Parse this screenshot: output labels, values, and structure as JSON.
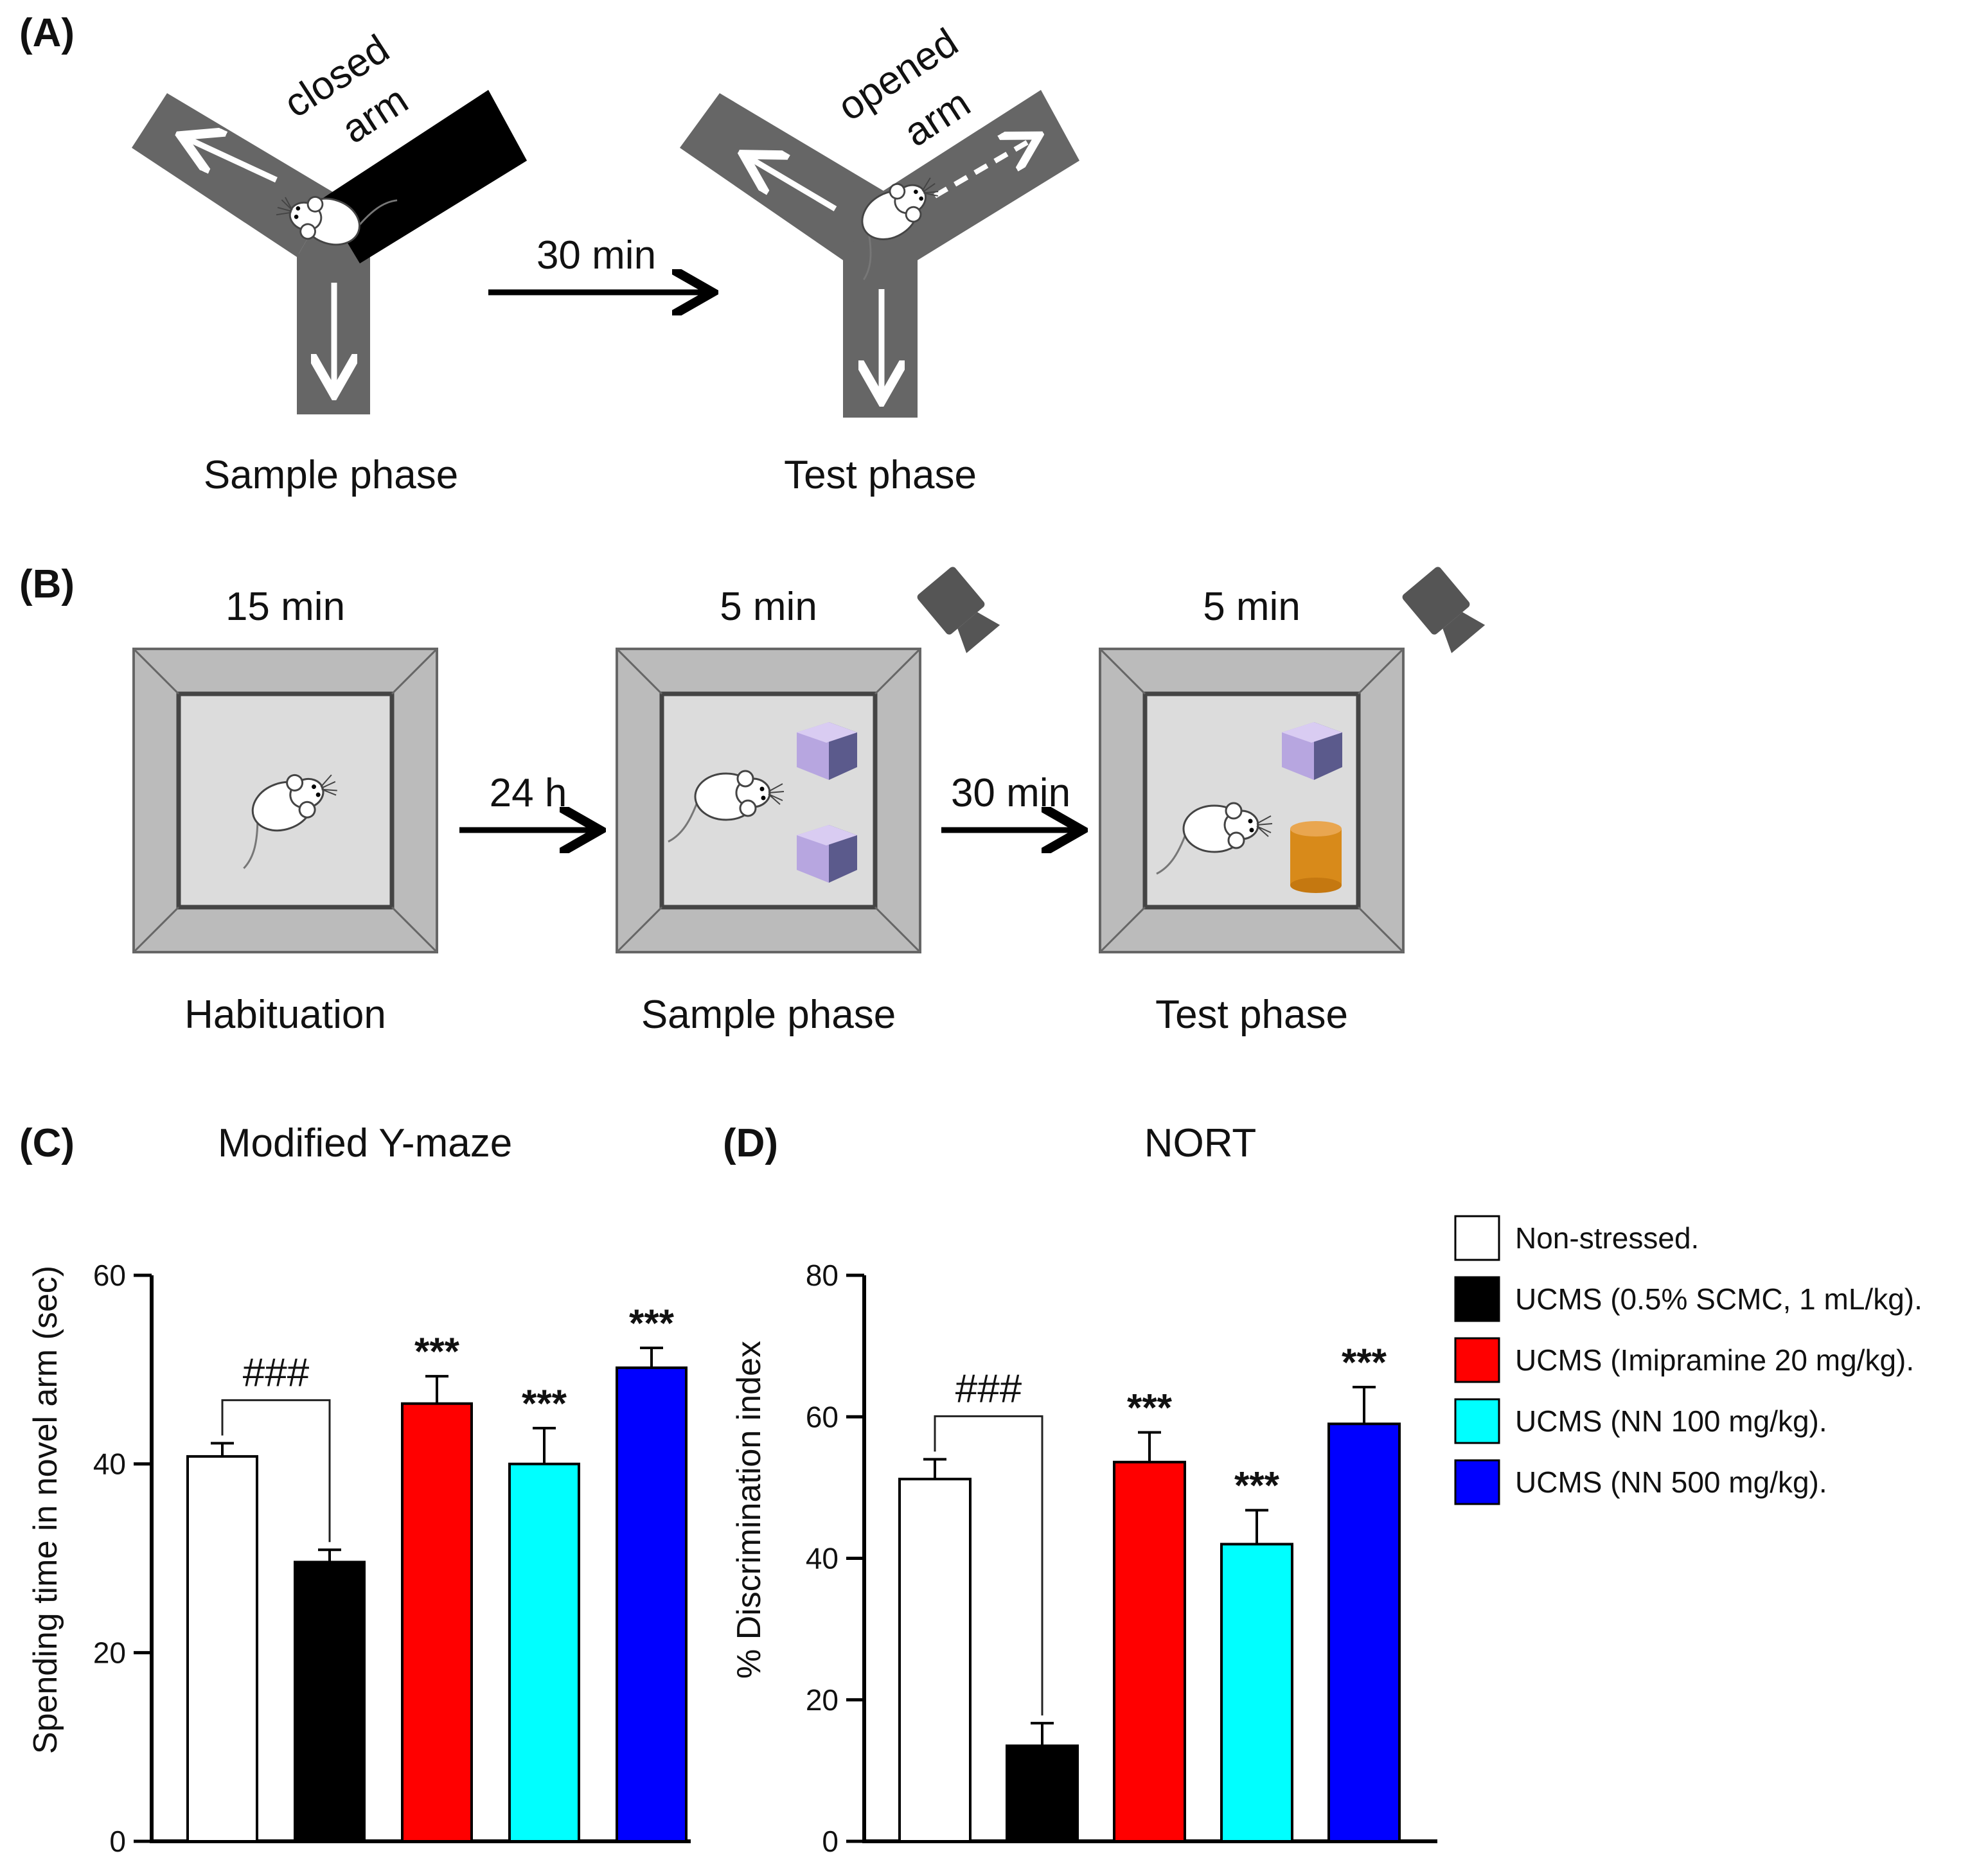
{
  "panel_a": {
    "label": "(A)",
    "closed_arm_line1": "closed",
    "closed_arm_line2": "arm",
    "opened_arm_line1": "opened",
    "opened_arm_line2": "arm",
    "interval": "30 min",
    "sample_caption": "Sample phase",
    "test_caption": "Test phase"
  },
  "panel_b": {
    "label": "(B)",
    "durations": [
      "15 min",
      "5 min",
      "5 min"
    ],
    "intervals": [
      "24 h",
      "30 min"
    ],
    "captions": [
      "Habituation",
      "Sample phase",
      "Test phase"
    ]
  },
  "legend": [
    {
      "label": "Non-stressed.",
      "color": "#ffffff"
    },
    {
      "label": "UCMS (0.5% SCMC, 1 mL/kg).",
      "color": "#000000"
    },
    {
      "label": "UCMS (Imipramine 20 mg/kg).",
      "color": "#ff0000"
    },
    {
      "label": "UCMS (NN 100 mg/kg).",
      "color": "#00ffff"
    },
    {
      "label": "UCMS (NN 500 mg/kg).",
      "color": "#0000ff"
    }
  ],
  "chart_data": [
    {
      "panel_label": "(C)",
      "type": "bar",
      "title": "Modified Y-maze",
      "ylabel": "Spending time in novel arm (sec)",
      "xlabel": "",
      "ylim": [
        0,
        60
      ],
      "yticks": [
        0,
        20,
        40,
        60
      ],
      "values": [
        40.8,
        29.6,
        46.4,
        40.0,
        50.2
      ],
      "errors": [
        1.4,
        1.3,
        2.9,
        3.8,
        2.1
      ],
      "colors": [
        "#ffffff",
        "#000000",
        "#ff0000",
        "#00ffff",
        "#0000ff"
      ],
      "annotations": [
        "",
        "",
        "***",
        "***",
        "***"
      ],
      "comparison": {
        "label": "###",
        "from": 0,
        "to": 1
      }
    },
    {
      "panel_label": "(D)",
      "type": "bar",
      "title": "NORT",
      "ylabel": "% Discrimination index",
      "xlabel": "",
      "ylim": [
        0,
        80
      ],
      "yticks": [
        0,
        20,
        40,
        60,
        80
      ],
      "values": [
        51.2,
        13.5,
        53.6,
        42.0,
        59.0
      ],
      "errors": [
        2.8,
        3.2,
        4.2,
        4.8,
        5.2
      ],
      "colors": [
        "#ffffff",
        "#000000",
        "#ff0000",
        "#00ffff",
        "#0000ff"
      ],
      "annotations": [
        "",
        "",
        "***",
        "***",
        "***"
      ],
      "comparison": {
        "label": "###",
        "from": 0,
        "to": 1
      }
    }
  ]
}
